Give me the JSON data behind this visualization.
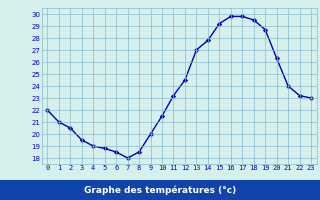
{
  "x": [
    0,
    1,
    2,
    3,
    4,
    5,
    6,
    7,
    8,
    9,
    10,
    11,
    12,
    13,
    14,
    15,
    16,
    17,
    18,
    19,
    20,
    21,
    22,
    23
  ],
  "y": [
    22.0,
    21.0,
    20.5,
    19.5,
    19.0,
    18.8,
    18.5,
    18.0,
    18.5,
    20.0,
    21.5,
    23.2,
    24.5,
    27.0,
    27.8,
    29.2,
    29.8,
    29.8,
    29.5,
    28.7,
    26.3,
    24.0,
    23.2,
    23.0
  ],
  "xlabel": "Graphe des températures (°c)",
  "ylabel_ticks": [
    18,
    19,
    20,
    21,
    22,
    23,
    24,
    25,
    26,
    27,
    28,
    29,
    30
  ],
  "ylim": [
    17.5,
    30.5
  ],
  "xlim": [
    -0.5,
    23.5
  ],
  "line_color": "#0000bb",
  "marker": "D",
  "marker_size": 2.2,
  "bg_color": "#d6f0ee",
  "grid_color": "#88bbcc",
  "xlabel_color": "#ffffff",
  "xlabel_bg": "#1144aa",
  "tick_color": "#0000bb",
  "tick_fontsize": 5.0,
  "xlabel_fontsize": 6.5
}
